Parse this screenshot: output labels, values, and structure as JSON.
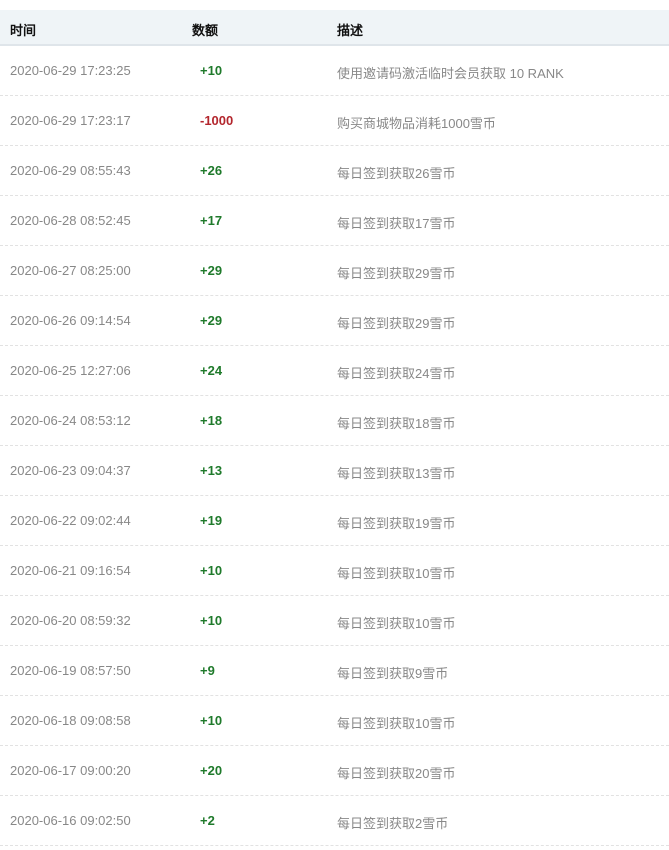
{
  "headers": {
    "time": "时间",
    "amount": "数额",
    "description": "描述"
  },
  "colors": {
    "positive": "#1f7a2b",
    "negative": "#b3262d"
  },
  "rows": [
    {
      "time": "2020-06-29 17:23:25",
      "amount": "+10",
      "description": "使用邀请码激活临时会员获取 10 RANK"
    },
    {
      "time": "2020-06-29 17:23:17",
      "amount": "-1000",
      "description": "购买商城物品消耗1000雪币"
    },
    {
      "time": "2020-06-29 08:55:43",
      "amount": "+26",
      "description": "每日签到获取26雪币"
    },
    {
      "time": "2020-06-28 08:52:45",
      "amount": "+17",
      "description": "每日签到获取17雪币"
    },
    {
      "time": "2020-06-27 08:25:00",
      "amount": "+29",
      "description": "每日签到获取29雪币"
    },
    {
      "time": "2020-06-26 09:14:54",
      "amount": "+29",
      "description": "每日签到获取29雪币"
    },
    {
      "time": "2020-06-25 12:27:06",
      "amount": "+24",
      "description": "每日签到获取24雪币"
    },
    {
      "time": "2020-06-24 08:53:12",
      "amount": "+18",
      "description": "每日签到获取18雪币"
    },
    {
      "time": "2020-06-23 09:04:37",
      "amount": "+13",
      "description": "每日签到获取13雪币"
    },
    {
      "time": "2020-06-22 09:02:44",
      "amount": "+19",
      "description": "每日签到获取19雪币"
    },
    {
      "time": "2020-06-21 09:16:54",
      "amount": "+10",
      "description": "每日签到获取10雪币"
    },
    {
      "time": "2020-06-20 08:59:32",
      "amount": "+10",
      "description": "每日签到获取10雪币"
    },
    {
      "time": "2020-06-19 08:57:50",
      "amount": "+9",
      "description": "每日签到获取9雪币"
    },
    {
      "time": "2020-06-18 09:08:58",
      "amount": "+10",
      "description": "每日签到获取10雪币"
    },
    {
      "time": "2020-06-17 09:00:20",
      "amount": "+20",
      "description": "每日签到获取20雪币"
    },
    {
      "time": "2020-06-16 09:02:50",
      "amount": "+2",
      "description": "每日签到获取2雪币"
    }
  ]
}
